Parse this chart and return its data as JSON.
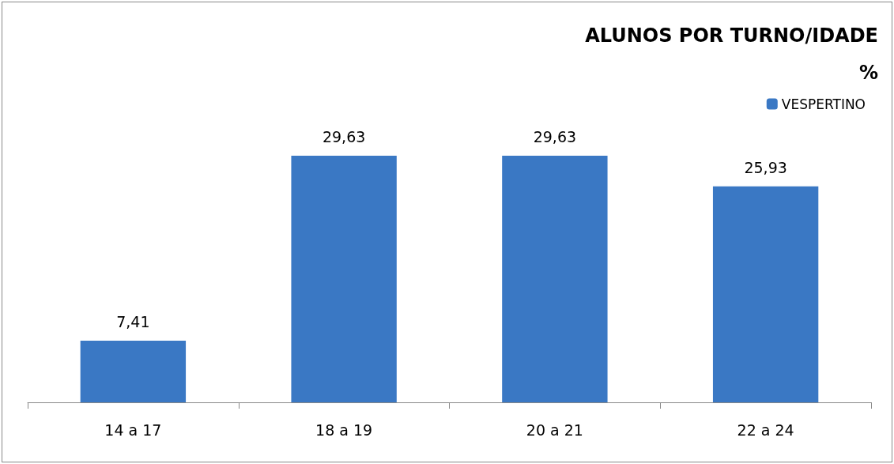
{
  "chart_data": {
    "type": "bar",
    "title": "ALUNOS POR TURNO/IDADE",
    "subtitle": "%",
    "categories": [
      "14 a 17",
      "18 a 19",
      "20 a 21",
      "22 a 24"
    ],
    "series": [
      {
        "name": "VESPERTINO",
        "color": "#3a78c4",
        "values": [
          7.41,
          29.63,
          29.63,
          25.93
        ],
        "value_labels": [
          "7,41",
          "29,63",
          "29,63",
          "25,93"
        ]
      }
    ],
    "legend": "top right"
  }
}
